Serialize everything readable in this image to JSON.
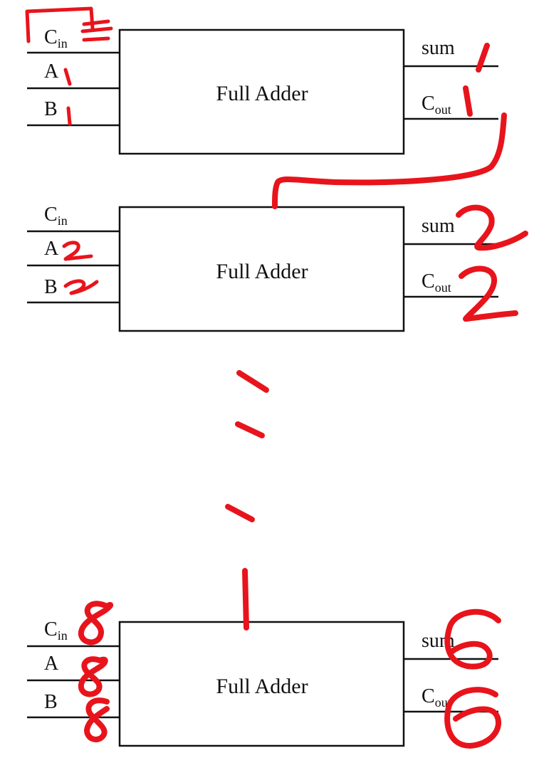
{
  "blocks": [
    {
      "title": "Full Adder",
      "inputs": {
        "cin_main": "C",
        "cin_sub": "in",
        "a": "A",
        "b": "B"
      },
      "outputs": {
        "sum": "sum",
        "cout_main": "C",
        "cout_sub": "out"
      }
    },
    {
      "title": "Full Adder",
      "inputs": {
        "cin_main": "C",
        "cin_sub": "in",
        "a": "A",
        "b": "B"
      },
      "outputs": {
        "sum": "sum",
        "cout_main": "C",
        "cout_sub": "out"
      }
    },
    {
      "title": "Full Adder",
      "inputs": {
        "cin_main": "C",
        "cin_sub": "in",
        "a": "A",
        "b": "B"
      },
      "outputs": {
        "sum": "sum",
        "cout_main": "C",
        "cout_sub": "out"
      }
    }
  ],
  "colors": {
    "ink": "#e8141c",
    "line": "#111111",
    "background": "#ffffff"
  }
}
